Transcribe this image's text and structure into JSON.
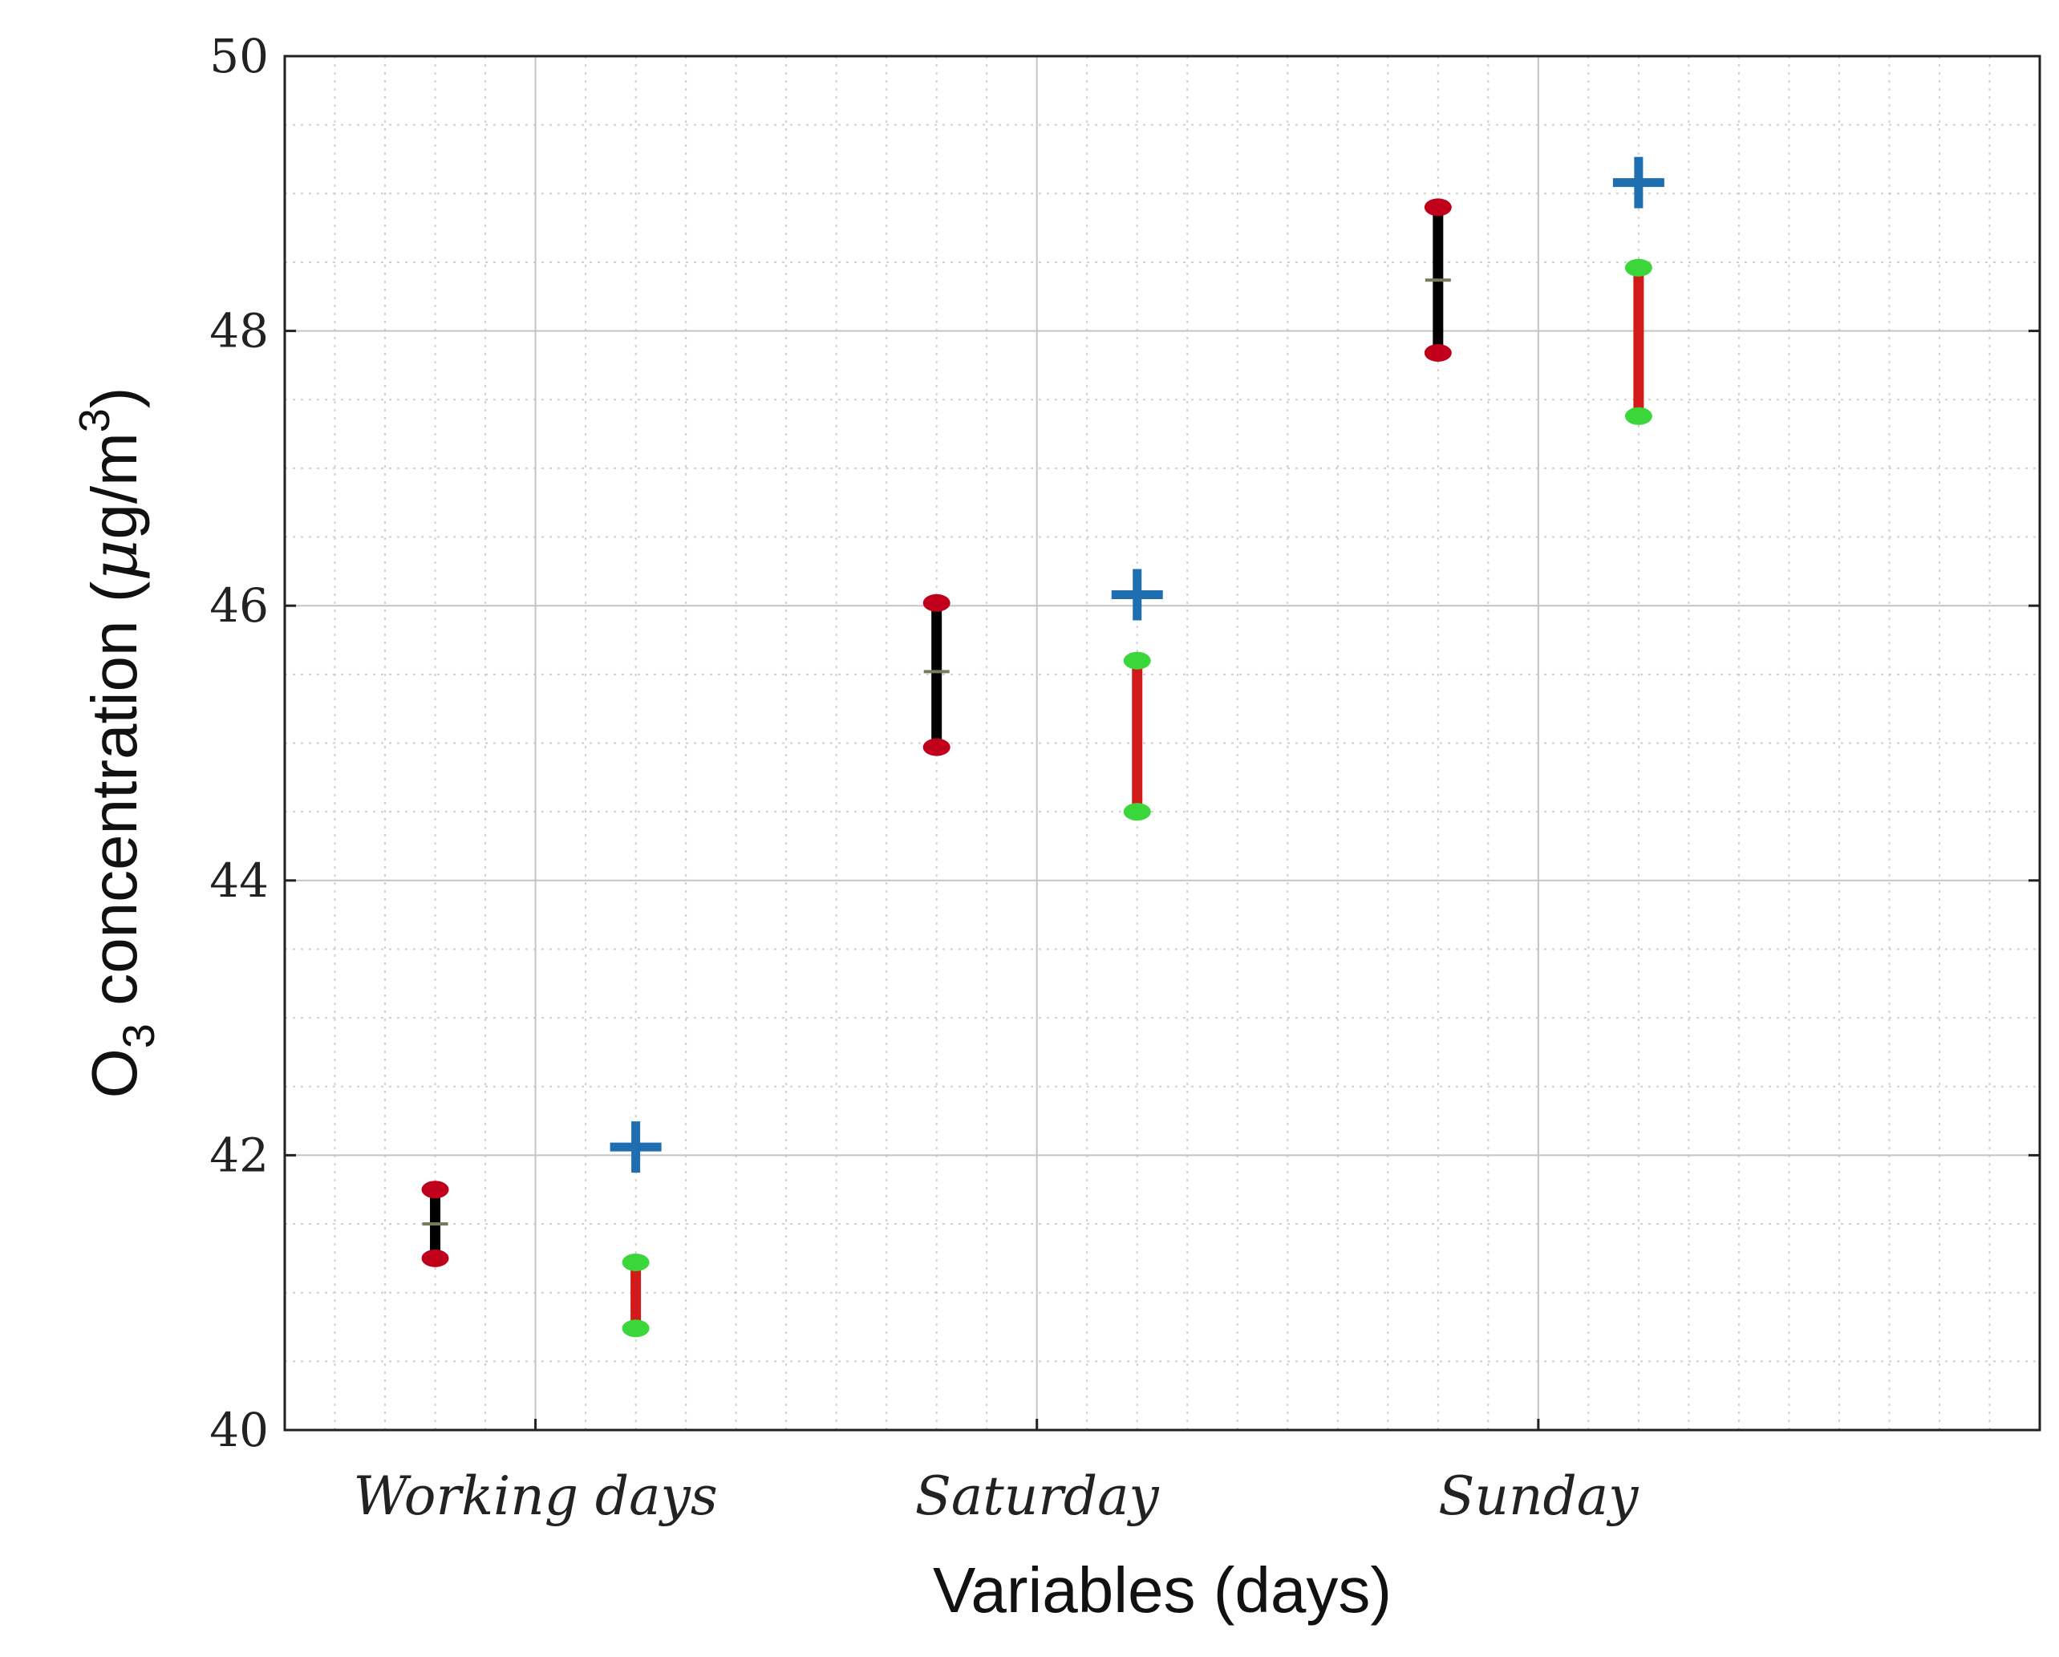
{
  "chart_data": {
    "type": "scatter",
    "title": "",
    "xlabel": "Variables (days)",
    "ylabel": {
      "prefix": "O",
      "subscript": "3",
      "middle": " concentration (",
      "mu": "μ",
      "unit": "g/m",
      "superscript": "3",
      "suffix": ")"
    },
    "categories": [
      "Working days",
      "Saturday",
      "Sunday"
    ],
    "ylim": [
      40,
      50
    ],
    "yticks": [
      "40",
      "42",
      "44",
      "46",
      "48",
      "50"
    ],
    "grid": true,
    "series": [
      {
        "name": "interval-black",
        "kind": "interval",
        "line_color": "#000000",
        "end_color": "#c0001a",
        "offset": -0.2,
        "low": [
          41.25,
          44.97,
          47.84
        ],
        "high": [
          41.75,
          46.02,
          48.9
        ],
        "mid": [
          41.5,
          45.52,
          48.37
        ]
      },
      {
        "name": "interval-red",
        "kind": "interval",
        "line_color": "#d11a1a",
        "end_color": "#3ad63a",
        "offset": 0.2,
        "low": [
          40.74,
          44.5,
          47.38
        ],
        "high": [
          41.22,
          45.6,
          48.46
        ]
      },
      {
        "name": "plus-markers",
        "kind": "point",
        "color": "#1f6fb0",
        "offset": 0.2,
        "values": [
          42.06,
          46.08,
          49.08
        ]
      }
    ]
  }
}
